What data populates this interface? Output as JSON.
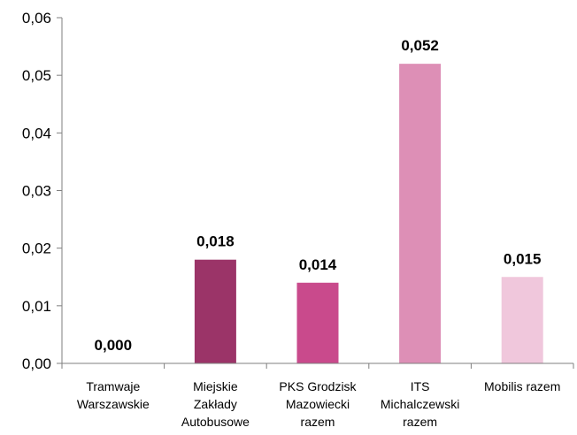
{
  "chart_data": {
    "type": "bar",
    "categories": [
      [
        "Tramwaje",
        "Warszawskie"
      ],
      [
        "Miejskie",
        "Zakłady",
        "Autobusowe"
      ],
      [
        "PKS Grodzisk",
        "Mazowiecki",
        "razem"
      ],
      [
        "ITS",
        "Michalczewski",
        "razem"
      ],
      [
        "Mobilis razem"
      ]
    ],
    "values": [
      0.0,
      0.018,
      0.014,
      0.052,
      0.015
    ],
    "data_labels": [
      "0,000",
      "0,018",
      "0,014",
      "0,052",
      "0,015"
    ],
    "bar_colors": [
      "#9b3468",
      "#9b3468",
      "#c94a8c",
      "#dd8fb6",
      "#f0c7dc"
    ],
    "ylim": [
      0,
      0.06
    ],
    "yticks": [
      0,
      0.01,
      0.02,
      0.03,
      0.04,
      0.05,
      0.06
    ],
    "ytick_labels": [
      "0,00",
      "0,01",
      "0,02",
      "0,03",
      "0,04",
      "0,05",
      "0,06"
    ],
    "grid": false,
    "title": "",
    "xlabel": "",
    "ylabel": ""
  }
}
